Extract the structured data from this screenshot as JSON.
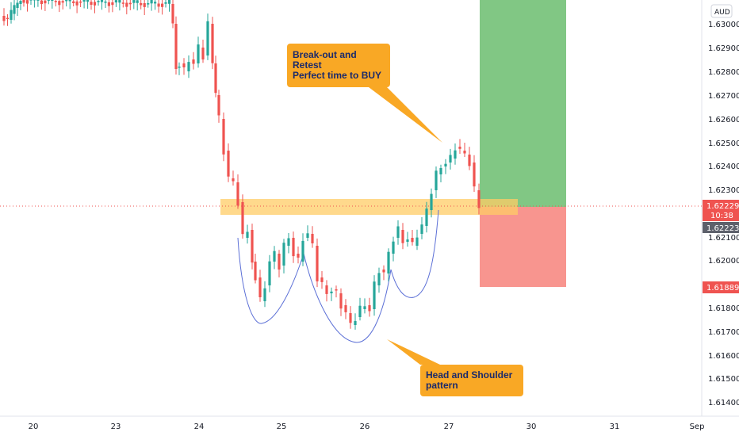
{
  "chart_data": {
    "type": "candlestick",
    "currency_label": "AUD",
    "y_axis": {
      "ticks": [
        "1.63000",
        "1.62900",
        "1.62800",
        "1.62700",
        "1.62600",
        "1.62500",
        "1.62400",
        "1.62300",
        "1.62100",
        "1.62000",
        "1.61800",
        "1.61700",
        "1.61600",
        "1.61500",
        "1.61400"
      ],
      "range": [
        1.6133,
        1.6305
      ]
    },
    "x_axis": {
      "ticks": [
        "20",
        "23",
        "24",
        "25",
        "26",
        "27",
        "30",
        "31",
        "Sep"
      ]
    },
    "price_tags": {
      "last_price": "1.62229",
      "countdown": "10:38",
      "bid_price": "1.62223",
      "stop_price": "1.61889"
    },
    "annotations": {
      "breakout": [
        "Break-out and",
        "Retest",
        "Perfect time to BUY"
      ],
      "pattern": [
        "Head and Shoulder",
        "pattern"
      ]
    },
    "colors": {
      "up": "#26a69a",
      "down": "#ef5350",
      "callout": "#f9a825",
      "profit_zone": "#81c784",
      "loss_zone": "#f8958f",
      "support_band": "#ffcc66",
      "pattern_curve": "#5b6fd6"
    }
  }
}
